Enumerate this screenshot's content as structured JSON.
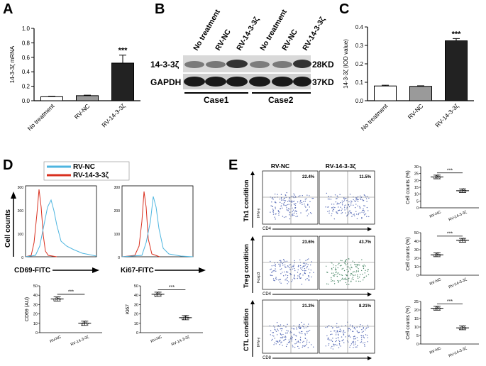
{
  "panel_letters": [
    "A",
    "B",
    "C",
    "D",
    "E"
  ],
  "chart_data": [
    {
      "id": "A",
      "type": "bar",
      "categories": [
        "No treatment",
        "RV-NC",
        "RV-14-3-3ζ"
      ],
      "values": [
        0.055,
        0.07,
        0.52
      ],
      "errors": [
        0.005,
        0.007,
        0.11
      ],
      "colors": [
        "#ffffff",
        "#9a9a9a",
        "#222222"
      ],
      "ylabel": "14-3-3ζ mRNA",
      "ylim": [
        0,
        1.0
      ],
      "yticks": [
        "0.0",
        "0.2",
        "0.4",
        "0.6",
        "0.8",
        "1.0"
      ],
      "significance": "***"
    },
    {
      "id": "C",
      "type": "bar",
      "categories": [
        "No treatment",
        "RV-NC",
        "RV-14-3-3ζ"
      ],
      "values": [
        0.08,
        0.078,
        0.325
      ],
      "errors": [
        0.004,
        0.003,
        0.012
      ],
      "colors": [
        "#ffffff",
        "#9a9a9a",
        "#222222"
      ],
      "ylabel": "14-3-3ζ (IOD value)",
      "ylim": [
        0,
        0.4
      ],
      "yticks": [
        "0.0",
        "0.1",
        "0.2",
        "0.3",
        "0.4"
      ],
      "significance": "***"
    },
    {
      "id": "D-CD69",
      "type": "scatter",
      "categories": [
        "RV-NC",
        "RV-14-3-3ζ"
      ],
      "means": [
        36,
        10
      ],
      "ylabel": "CD69 (AU)",
      "ylim": [
        0,
        50
      ],
      "yticks": [
        "0",
        "10",
        "20",
        "30",
        "40",
        "50"
      ],
      "significance": "***"
    },
    {
      "id": "D-Ki67",
      "type": "scatter",
      "categories": [
        "RV-NC",
        "RV-14-3-3ζ"
      ],
      "means": [
        41,
        16
      ],
      "ylabel": "Ki67",
      "ylim": [
        0,
        50
      ],
      "yticks": [
        "0",
        "10",
        "20",
        "30",
        "40",
        "50"
      ],
      "significance": "***"
    },
    {
      "id": "E-Th1",
      "type": "scatter",
      "categories": [
        "RV-NC",
        "RV-14-3-3ζ"
      ],
      "means": [
        22.5,
        12.5
      ],
      "ylabel": "Cell counts (%)",
      "ylim": [
        0,
        30
      ],
      "yticks": [
        "0",
        "5",
        "10",
        "15",
        "20",
        "25",
        "30"
      ],
      "significance": "***"
    },
    {
      "id": "E-Treg",
      "type": "scatter",
      "categories": [
        "RV-NC",
        "RV-14-3-3ζ"
      ],
      "means": [
        24,
        41
      ],
      "ylabel": "Cell counts (%)",
      "ylim": [
        0,
        50
      ],
      "yticks": [
        "0",
        "10",
        "20",
        "30",
        "40",
        "50"
      ],
      "significance": "***"
    },
    {
      "id": "E-CTL",
      "type": "scatter",
      "categories": [
        "RV-NC",
        "RV-14-3-3ζ"
      ],
      "means": [
        21,
        9.5
      ],
      "ylabel": "Cell counts (%)",
      "ylim": [
        0,
        25
      ],
      "yticks": [
        "0",
        "5",
        "10",
        "15",
        "20",
        "25"
      ],
      "significance": "***"
    }
  ],
  "western": {
    "lanes": [
      "No treatment",
      "RV-NC",
      "RV-14-3-3ζ",
      "No treatment",
      "RV-NC",
      "RV-14-3-3ζ"
    ],
    "rows": [
      "14-3-3ζ",
      "GAPDH"
    ],
    "sizes": [
      "28KD",
      "37KD"
    ],
    "cases": [
      "Case1",
      "Case2"
    ]
  },
  "flow_d": {
    "legend": [
      "RV-NC",
      "RV-14-3-3ζ"
    ],
    "ylabel": "Cell counts",
    "xlabels": [
      "CD69-FITC",
      "Ki67-FITC"
    ],
    "yticks": [
      "0",
      "100",
      "200",
      "300"
    ]
  },
  "flow_e": {
    "columns": [
      "RV-NC",
      "RV-14-3-3ζ"
    ],
    "rows": [
      {
        "condition": "Th1 condition",
        "y": "IFN-γ",
        "x": "CD4",
        "pcts": [
          "22.4%",
          "11.5%"
        ]
      },
      {
        "condition": "Treg condition",
        "y": "Foxp3",
        "x": "CD4",
        "pcts": [
          "23.6%",
          "43.7%"
        ]
      },
      {
        "condition": "CTL condition",
        "y": "IFN-γ",
        "x": "CD8",
        "pcts": [
          "21.2%",
          "8.21%"
        ]
      }
    ]
  }
}
